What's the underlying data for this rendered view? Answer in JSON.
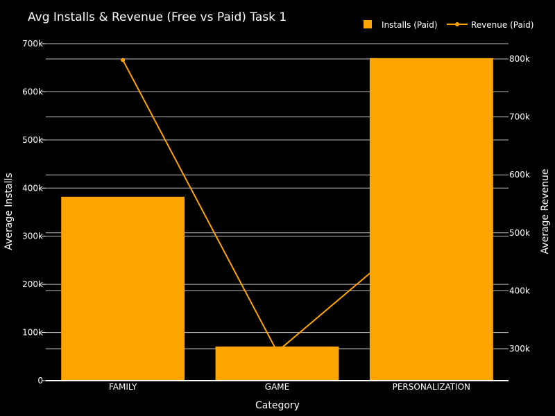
{
  "chart_data": {
    "type": "bar",
    "title": "Avg Installs & Revenue (Free vs Paid) Task 1",
    "xlabel": "Category",
    "ylabel": "Average Installs",
    "y2label": "Average Revenue",
    "categories": [
      "FAMILY",
      "GAME",
      "PERSONALIZATION"
    ],
    "series": [
      {
        "name": "Installs (Paid)",
        "type": "bar",
        "axis": "left",
        "color": "#FFA500",
        "values": [
          382000,
          71000,
          670000
        ]
      },
      {
        "name": "Revenue (Paid)",
        "type": "line",
        "axis": "right",
        "color": "#FFA500",
        "values": [
          798000,
          295000,
          520000
        ]
      }
    ],
    "ylim": [
      0,
      700000
    ],
    "y2lim": [
      245000,
      820000
    ],
    "yticks": [
      {
        "value": 0,
        "label": "0"
      },
      {
        "value": 100000,
        "label": "100k"
      },
      {
        "value": 200000,
        "label": "200k"
      },
      {
        "value": 300000,
        "label": "300k"
      },
      {
        "value": 400000,
        "label": "400k"
      },
      {
        "value": 500000,
        "label": "500k"
      },
      {
        "value": 600000,
        "label": "600k"
      },
      {
        "value": 700000,
        "label": "700k"
      }
    ],
    "y2ticks": [
      {
        "value": 300000,
        "label": "300k"
      },
      {
        "value": 400000,
        "label": "400k"
      },
      {
        "value": 500000,
        "label": "500k"
      },
      {
        "value": 600000,
        "label": "600k"
      },
      {
        "value": 700000,
        "label": "700k"
      },
      {
        "value": 800000,
        "label": "800k"
      }
    ],
    "grid": true,
    "legend_position": "top-right",
    "background": "#000000"
  }
}
